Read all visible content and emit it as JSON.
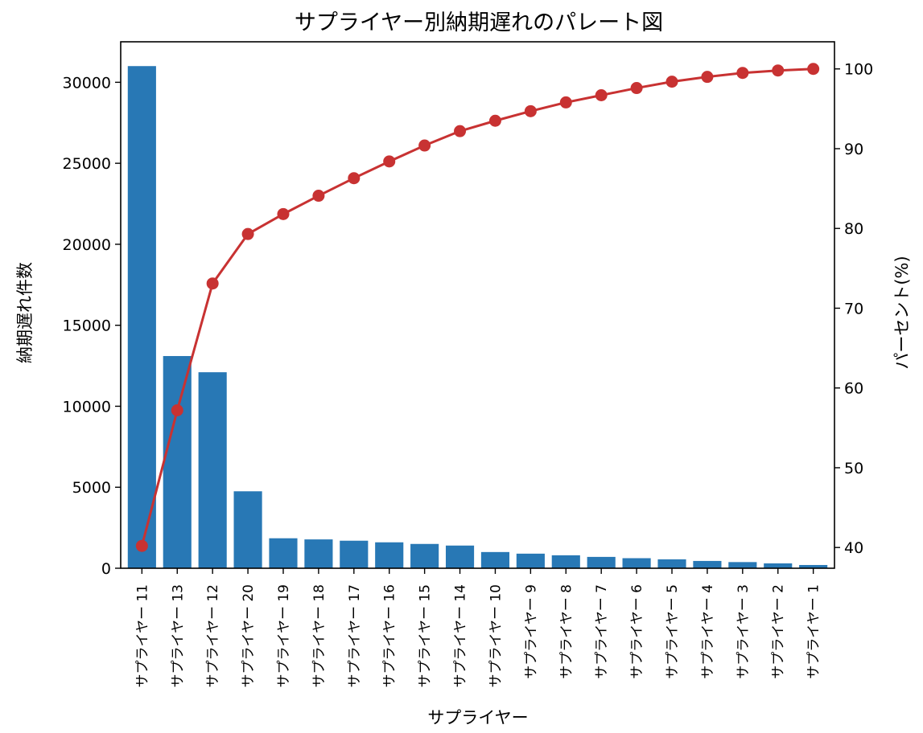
{
  "chart_data": {
    "type": "bar",
    "title": "サプライヤー別納期遅れのパレート図",
    "xlabel": "サプライヤー",
    "ylabel": "納期遅れ件数",
    "y2label": "パーセント(%)",
    "categories": [
      "サプライヤー 11",
      "サプライヤー 13",
      "サプライヤー 12",
      "サプライヤー 20",
      "サプライヤー 19",
      "サプライヤー 18",
      "サプライヤー 17",
      "サプライヤー 16",
      "サプライヤー 15",
      "サプライヤー 14",
      "サプライヤー 10",
      "サプライヤー 9",
      "サプライヤー 8",
      "サプライヤー 7",
      "サプライヤー 6",
      "サプライヤー 5",
      "サプライヤー 4",
      "サプライヤー 3",
      "サプライヤー 2",
      "サプライヤー 1"
    ],
    "series": [
      {
        "type": "bar",
        "axis": "left",
        "values": [
          31000,
          13100,
          12100,
          4750,
          1850,
          1780,
          1700,
          1600,
          1500,
          1400,
          1000,
          900,
          800,
          700,
          620,
          550,
          450,
          380,
          300,
          200
        ]
      },
      {
        "type": "line",
        "axis": "right",
        "values": [
          40.2,
          57.2,
          73.1,
          79.3,
          81.8,
          84.1,
          86.3,
          88.4,
          90.4,
          92.2,
          93.5,
          94.7,
          95.8,
          96.7,
          97.6,
          98.4,
          99.0,
          99.5,
          99.8,
          100.0
        ]
      }
    ],
    "ylim": [
      0,
      32500
    ],
    "y2lim": [
      37.4,
      103.4
    ],
    "yticks": [
      0,
      5000,
      10000,
      15000,
      20000,
      25000,
      30000
    ],
    "y2ticks": [
      40,
      50,
      60,
      70,
      80,
      90,
      100
    ],
    "bar_color": "#2878b5",
    "line_color": "#c83232",
    "grid": false,
    "legend": "none"
  }
}
